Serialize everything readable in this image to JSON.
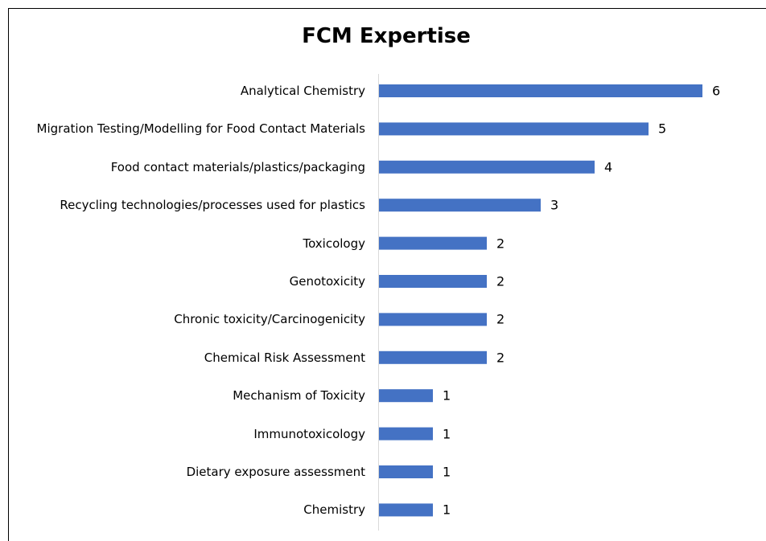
{
  "chart_data": {
    "type": "bar",
    "orientation": "horizontal",
    "title": "FCM Expertise",
    "categories": [
      "Analytical Chemistry",
      "Migration Testing/Modelling for Food Contact Materials",
      "Food contact materials/plastics/packaging",
      "Recycling technologies/processes used for plastics",
      "Toxicology",
      "Genotoxicity",
      "Chronic toxicity/Carcinogenicity",
      "Chemical Risk Assessment",
      "Mechanism of Toxicity",
      "Immunotoxicology",
      "Dietary exposure assessment",
      "Chemistry"
    ],
    "values": [
      6,
      5,
      4,
      3,
      2,
      2,
      2,
      2,
      1,
      1,
      1,
      1
    ],
    "color": "#4472c4"
  }
}
